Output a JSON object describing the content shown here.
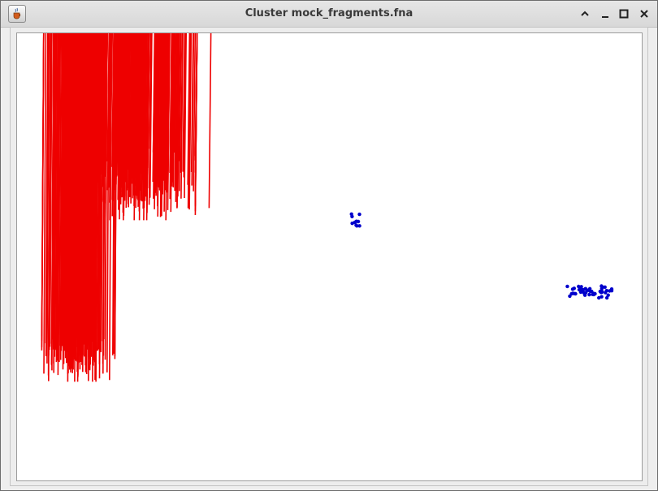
{
  "window": {
    "title": "Cluster mock_fragments.fna",
    "app_icon": "java-cup-icon",
    "controls": [
      "collapse-icon",
      "minimize-icon",
      "maximize-icon",
      "close-icon"
    ]
  },
  "chart_data": {
    "type": "scatter",
    "title": "",
    "xlabel": "",
    "ylabel": "",
    "grid": false,
    "legend": "none",
    "series": [
      {
        "marker": "x",
        "color": "#ee0000",
        "clusters": [
          {
            "center": [
              166,
              228
            ],
            "radius": [
              75,
              44
            ],
            "count": 330
          },
          {
            "center": [
              97,
              438
            ],
            "radius": [
              45,
              33
            ],
            "count": 200
          },
          {
            "center": [
              88,
              318
            ],
            "radius": [
              4,
              4
            ],
            "count": 6
          },
          {
            "center": [
              108,
              329
            ],
            "radius": [
              4,
              5
            ],
            "count": 6
          },
          {
            "center": [
              258,
              257
            ],
            "radius": [
              1,
              1
            ],
            "count": 1
          }
        ]
      },
      {
        "marker": "triangle-down",
        "color": "#00ee00",
        "clusters": [
          {
            "center": [
              437,
              100
            ],
            "radius": [
              50,
              35
            ],
            "count": 230
          },
          {
            "center": [
              432,
              160
            ],
            "radius": [
              38,
              32
            ],
            "count": 150
          },
          {
            "center": [
              436,
              215
            ],
            "radius": [
              12,
              35
            ],
            "count": 55
          }
        ]
      },
      {
        "marker": "triangle-up",
        "color": "#ffc300",
        "clusters": [
          {
            "center": [
              400,
              400
            ],
            "radius": [
              80,
              48
            ],
            "count": 330
          },
          {
            "center": [
              368,
              480
            ],
            "radius": [
              56,
              70
            ],
            "count": 300
          },
          {
            "center": [
              432,
              295
            ],
            "radius": [
              4,
              12
            ],
            "count": 7
          },
          {
            "center": [
              285,
              425
            ],
            "radius": [
              1,
              1
            ],
            "count": 1
          }
        ]
      },
      {
        "marker": "dot",
        "color": "#0000cc",
        "clusters": [
          {
            "center": [
              723,
              357
            ],
            "radius": [
              28,
              8
            ],
            "count": 48
          },
          {
            "center": [
              436,
              272
            ],
            "radius": [
              9,
              11
            ],
            "count": 10
          }
        ]
      }
    ]
  }
}
